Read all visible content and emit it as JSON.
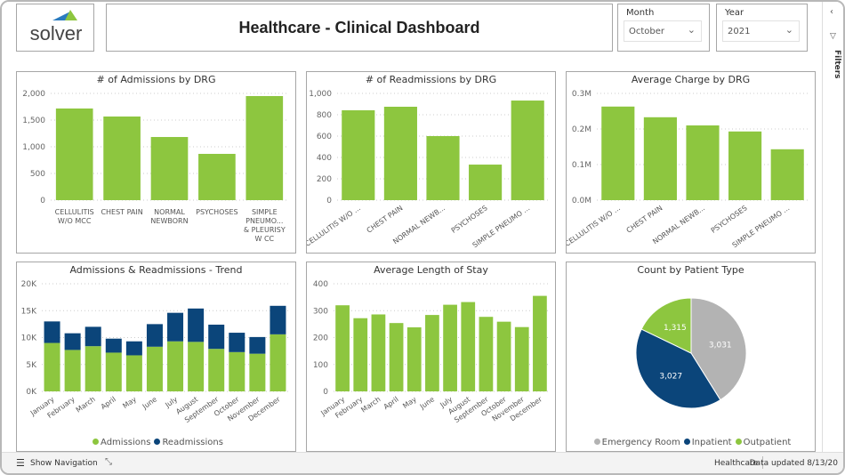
{
  "header": {
    "logo_text": "solver",
    "title": "Healthcare - Clinical Dashboard"
  },
  "filters": {
    "month_label": "Month",
    "month_value": "October",
    "year_label": "Year",
    "year_value": "2021",
    "pane_label": "Filters"
  },
  "colors": {
    "green": "#8dc63f",
    "navy": "#0b457a",
    "gray": "#b3b3b3"
  },
  "footer": {
    "nav": "Show Navigation",
    "page": "Healthcare",
    "updated": "Data updated 8/13/20"
  },
  "chart_data": [
    {
      "id": "adm",
      "type": "bar",
      "title": "# of Admissions by DRG",
      "categories": [
        "CELLULITIS W/O MCC",
        "CHEST PAIN",
        "NORMAL NEWBORN",
        "PSYCHOSES",
        "SIMPLE PNEUMO... & PLEURISY W CC"
      ],
      "values": [
        1717,
        1567,
        1183,
        867,
        1950
      ],
      "ylim": [
        0,
        2000
      ],
      "ticks": [
        "0",
        "500",
        "1,000",
        "1,500",
        "2,000"
      ],
      "tick_values": [
        0,
        500,
        1000,
        1500,
        2000
      ],
      "label_style": "wrap"
    },
    {
      "id": "readm",
      "type": "bar",
      "title": "# of Readmissions by DRG",
      "categories": [
        "CELLULITIS W/O ...",
        "CHEST PAIN",
        "NORMAL NEWB...",
        "PSYCHOSES",
        "SIMPLE PNEUMO ..."
      ],
      "values": [
        842,
        875,
        600,
        333,
        933
      ],
      "ylim": [
        0,
        1000
      ],
      "ticks": [
        "0",
        "200",
        "400",
        "600",
        "800",
        "1,000"
      ],
      "tick_values": [
        0,
        200,
        400,
        600,
        800,
        1000
      ],
      "label_style": "rotate"
    },
    {
      "id": "charge",
      "type": "bar",
      "title": "Average Charge by DRG",
      "categories": [
        "CELLULITIS W/O ...",
        "CHEST PAIN",
        "NORMAL NEWB...",
        "PSYCHOSES",
        "SIMPLE PNEUMO ..."
      ],
      "values": [
        0.263,
        0.233,
        0.21,
        0.193,
        0.143
      ],
      "ylim": [
        0,
        0.3
      ],
      "ticks": [
        "0.0M",
        "0.1M",
        "0.2M",
        "0.3M"
      ],
      "tick_values": [
        0,
        0.1,
        0.2,
        0.3
      ],
      "label_style": "rotate"
    },
    {
      "id": "trend",
      "type": "stacked-bar",
      "title": "Admissions & Readmissions - Trend",
      "categories": [
        "January",
        "February",
        "March",
        "April",
        "May",
        "June",
        "July",
        "August",
        "September",
        "October",
        "November",
        "December"
      ],
      "series": [
        {
          "name": "Admissions",
          "values": [
            9000,
            7700,
            8400,
            7200,
            6700,
            8300,
            9300,
            9200,
            7900,
            7300,
            7000,
            10600
          ]
        },
        {
          "name": "Readmissions",
          "values": [
            4000,
            3100,
            3600,
            2600,
            2600,
            4200,
            5300,
            6200,
            4500,
            3600,
            3100,
            5300
          ]
        }
      ],
      "ylim": [
        0,
        20000
      ],
      "ticks": [
        "0K",
        "5K",
        "10K",
        "15K",
        "20K"
      ],
      "tick_values": [
        0,
        5000,
        10000,
        15000,
        20000
      ],
      "label_style": "rotate"
    },
    {
      "id": "los",
      "type": "bar",
      "title": "Average Length of Stay",
      "categories": [
        "January",
        "February",
        "March",
        "April",
        "May",
        "June",
        "July",
        "August",
        "September",
        "October",
        "November",
        "December"
      ],
      "values": [
        320,
        272,
        286,
        254,
        238,
        284,
        322,
        332,
        277,
        259,
        239,
        355
      ],
      "ylim": [
        0,
        400
      ],
      "ticks": [
        "0",
        "100",
        "200",
        "300",
        "400"
      ],
      "tick_values": [
        0,
        100,
        200,
        300,
        400
      ],
      "label_style": "rotate"
    },
    {
      "id": "pie",
      "type": "pie",
      "title": "Count by Patient Type",
      "categories": [
        "Emergency Room",
        "Inpatient",
        "Outpatient"
      ],
      "values": [
        3031,
        3027,
        1315
      ],
      "labels": [
        "3,031",
        "3,027",
        "1,315"
      ]
    }
  ]
}
